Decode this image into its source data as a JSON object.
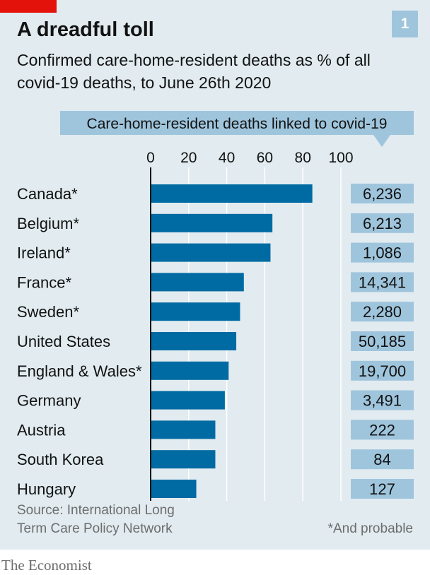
{
  "header": {
    "title": "A dreadful toll",
    "subtitle": "Confirmed care-home-resident deaths as % of all covid-19 deaths, to June 26th 2020",
    "chart_number": "1"
  },
  "footer": {
    "source": [
      "Source: International Long",
      "Term Care Policy Network"
    ],
    "note": "*And probable",
    "brand": "The Economist"
  },
  "colors": {
    "background": "#e1ebf0",
    "bar": "#006ba2",
    "value_box": "#9fc5dd",
    "red_tag": "#e3120b",
    "chart_number_box": "#9fc5dd",
    "grid": "#ffffff",
    "text": "#121212"
  },
  "chart_data": {
    "type": "bar",
    "orientation": "horizontal",
    "categories": [
      "Canada*",
      "Belgium*",
      "Ireland*",
      "France*",
      "Sweden*",
      "United States",
      "England & Wales*",
      "Germany",
      "Austria",
      "South Korea",
      "Hungary"
    ],
    "values": [
      85,
      64,
      63,
      49,
      47,
      45,
      41,
      39,
      34,
      34,
      24
    ],
    "xlim": [
      0,
      100
    ],
    "xticks": [
      0,
      20,
      40,
      60,
      80,
      100
    ],
    "grid": true,
    "deaths_column": {
      "label": "Care-home-resident deaths linked to covid-19",
      "values": [
        "6,236",
        "6,213",
        "1,086",
        "14,341",
        "2,280",
        "50,185",
        "19,700",
        "3,491",
        "222",
        "84",
        "127"
      ]
    }
  }
}
